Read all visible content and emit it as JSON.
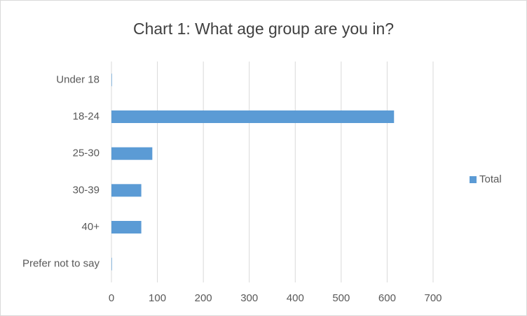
{
  "chart_data": {
    "type": "bar",
    "orientation": "horizontal",
    "title": "Chart 1: What age group are you in?",
    "categories": [
      "Under 18",
      "18-24",
      "25-30",
      "30-39",
      "40+",
      "Prefer not to say"
    ],
    "series": [
      {
        "name": "Total",
        "color": "#5b9bd5",
        "values": [
          1,
          615,
          89,
          65,
          65,
          1
        ]
      }
    ],
    "xlim": [
      0,
      700
    ],
    "xticks": [
      0,
      100,
      200,
      300,
      400,
      500,
      600,
      700
    ],
    "grid": true,
    "legend": "right"
  }
}
